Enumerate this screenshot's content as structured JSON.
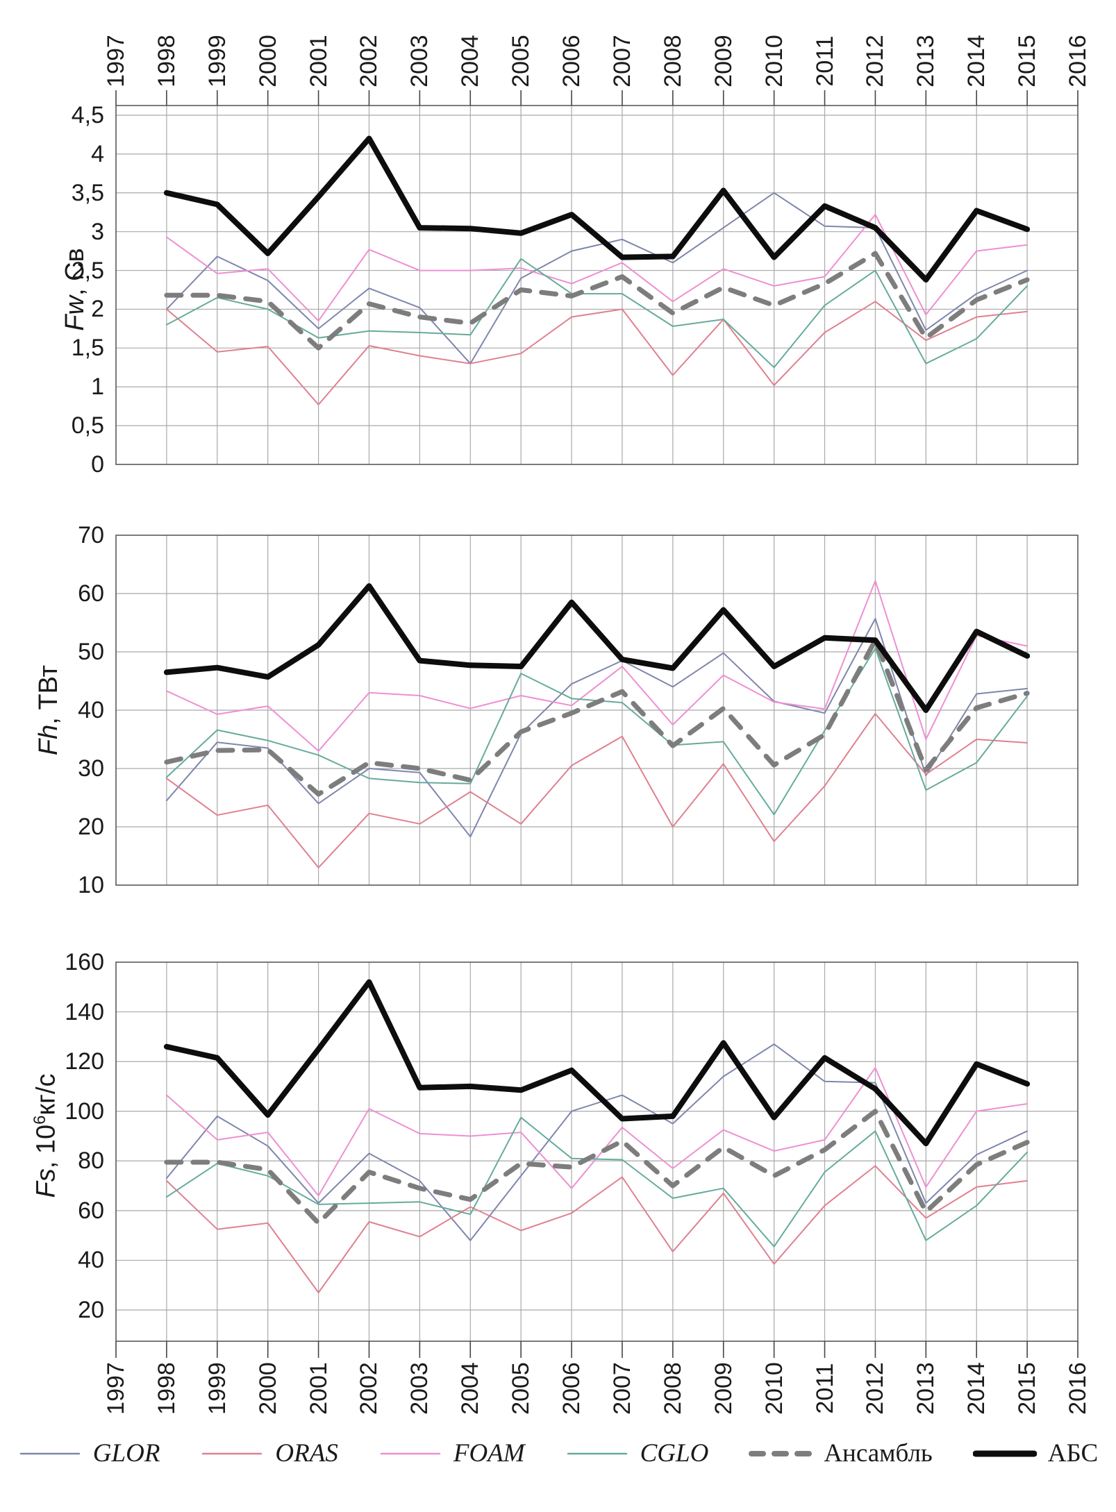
{
  "figure": {
    "description": "Three stacked annual time-series charts (1998-2015) comparing ocean model fluxes",
    "x_axis_years": [
      "1997",
      "1998",
      "1999",
      "2000",
      "2001",
      "2002",
      "2003",
      "2004",
      "2005",
      "2006",
      "2007",
      "2008",
      "2009",
      "2010",
      "2011",
      "2012",
      "2013",
      "2014",
      "2015",
      "2016"
    ]
  },
  "legend": [
    {
      "label": "GLOR",
      "italic": true,
      "color": "#7e86ad",
      "style": "thin"
    },
    {
      "label": "ORAS",
      "italic": true,
      "color": "#e0808f",
      "style": "thin"
    },
    {
      "label": "FOAM",
      "italic": true,
      "color": "#ee8fd2",
      "style": "thin"
    },
    {
      "label": "CGLO",
      "italic": true,
      "color": "#65ab9c",
      "style": "thin"
    },
    {
      "label": "Ансамбль",
      "italic": false,
      "color": "#7d7d7d",
      "style": "dashed"
    },
    {
      "label": "АБС",
      "italic": false,
      "color": "#0d0d0d",
      "style": "thick"
    }
  ],
  "chart_data": [
    {
      "type": "line",
      "title_parts": [
        {
          "t": "Fw",
          "i": 1
        },
        {
          "t": ", Св"
        }
      ],
      "ylim": [
        0,
        4.5
      ],
      "ytick_values": [
        4.5,
        4,
        3.5,
        3,
        2.5,
        2,
        1.5,
        1,
        0.5,
        0
      ],
      "ytick_labels": [
        "4,5",
        "4",
        "3,5",
        "3",
        "2,5",
        "2",
        "1,5",
        "1",
        "0,5",
        "0"
      ],
      "x": [
        1998,
        1999,
        2000,
        2001,
        2002,
        2003,
        2004,
        2005,
        2006,
        2007,
        2008,
        2009,
        2010,
        2011,
        2012,
        2013,
        2014,
        2015
      ],
      "series": [
        {
          "name": "GLOR",
          "values": [
            2.0,
            2.68,
            2.37,
            1.75,
            2.27,
            2.02,
            1.3,
            2.4,
            2.75,
            2.9,
            2.6,
            3.05,
            3.5,
            3.07,
            3.05,
            1.73,
            2.2,
            2.5
          ]
        },
        {
          "name": "ORAS",
          "values": [
            2.0,
            1.45,
            1.52,
            0.77,
            1.53,
            1.4,
            1.3,
            1.43,
            1.9,
            2.0,
            1.15,
            1.87,
            1.02,
            1.7,
            2.1,
            1.6,
            1.9,
            1.97
          ]
        },
        {
          "name": "FOAM",
          "values": [
            2.93,
            2.46,
            2.52,
            1.85,
            2.77,
            2.5,
            2.5,
            2.53,
            2.33,
            2.6,
            2.1,
            2.52,
            2.3,
            2.42,
            3.22,
            1.93,
            2.75,
            2.83
          ]
        },
        {
          "name": "CGLO",
          "values": [
            1.8,
            2.15,
            2.0,
            1.63,
            1.72,
            1.7,
            1.67,
            2.65,
            2.2,
            2.2,
            1.78,
            1.87,
            1.25,
            2.05,
            2.5,
            1.3,
            1.62,
            2.3
          ]
        },
        {
          "name": "Ансамбль",
          "values": [
            2.18,
            2.18,
            2.1,
            1.5,
            2.07,
            1.9,
            1.82,
            2.25,
            2.17,
            2.42,
            1.95,
            2.28,
            2.05,
            2.33,
            2.72,
            1.63,
            2.12,
            2.38
          ]
        },
        {
          "name": "АБС",
          "values": [
            3.5,
            3.35,
            2.72,
            3.45,
            4.2,
            3.05,
            3.04,
            2.98,
            3.22,
            2.67,
            2.68,
            3.53,
            2.67,
            3.33,
            3.05,
            2.38,
            3.27,
            3.03
          ]
        }
      ]
    },
    {
      "type": "line",
      "title_parts": [
        {
          "t": "Fh",
          "i": 1
        },
        {
          "t": ", ТВт"
        }
      ],
      "ylim": [
        10,
        70
      ],
      "ytick_values": [
        70,
        60,
        50,
        40,
        30,
        20,
        10
      ],
      "ytick_labels": [
        "70",
        "60",
        "50",
        "40",
        "30",
        "20",
        "10"
      ],
      "x": [
        1998,
        1999,
        2000,
        2001,
        2002,
        2003,
        2004,
        2005,
        2006,
        2007,
        2008,
        2009,
        2010,
        2011,
        2012,
        2013,
        2014,
        2015
      ],
      "series": [
        {
          "name": "GLOR",
          "values": [
            24.5,
            34.5,
            33.5,
            24,
            30,
            29.3,
            18.3,
            36,
            44.5,
            48.5,
            44,
            49.8,
            41.5,
            39.5,
            55.7,
            28.8,
            42.8,
            43.7
          ]
        },
        {
          "name": "ORAS",
          "values": [
            28.3,
            22,
            23.7,
            13,
            22.3,
            20.5,
            26,
            20.5,
            30.5,
            35.5,
            20,
            30.8,
            17.5,
            27,
            39.4,
            29,
            35,
            34.4
          ]
        },
        {
          "name": "FOAM",
          "values": [
            43.3,
            39.3,
            40.7,
            33,
            43,
            42.5,
            40.3,
            42.5,
            40.8,
            47.5,
            37.5,
            46,
            41.4,
            40.2,
            62.2,
            35,
            52.8,
            51
          ]
        },
        {
          "name": "CGLO",
          "values": [
            28.5,
            36.6,
            34.8,
            32.3,
            28.3,
            27.6,
            27.4,
            46.3,
            42,
            41.3,
            34,
            34.6,
            22.1,
            36.5,
            50.6,
            26.3,
            31,
            42.4
          ]
        },
        {
          "name": "Ансамбль",
          "values": [
            31.1,
            33.1,
            33.2,
            25.6,
            31,
            30,
            28,
            36.3,
            39.5,
            43.2,
            33.9,
            40.3,
            30.6,
            35.8,
            52,
            29.8,
            40.4,
            42.9
          ]
        },
        {
          "name": "АБС",
          "values": [
            46.5,
            47.3,
            45.7,
            51.2,
            61.3,
            48.5,
            47.7,
            47.5,
            58.5,
            48.7,
            47.2,
            57.2,
            47.5,
            52.4,
            52,
            40,
            53.5,
            49.3
          ]
        }
      ]
    },
    {
      "type": "line",
      "title_parts": [
        {
          "t": "Fs",
          "i": 1
        },
        {
          "t": ", 10"
        },
        {
          "t": "6",
          "sup": 1
        },
        {
          "t": "кг/с"
        }
      ],
      "ylim": [
        20,
        160
      ],
      "ytick_values": [
        160,
        140,
        120,
        100,
        80,
        60,
        40,
        20
      ],
      "ytick_labels": [
        "160",
        "140",
        "120",
        "100",
        "80",
        "60",
        "40",
        "20"
      ],
      "x": [
        1998,
        1999,
        2000,
        2001,
        2002,
        2003,
        2004,
        2005,
        2006,
        2007,
        2008,
        2009,
        2010,
        2011,
        2012,
        2013,
        2014,
        2015
      ],
      "series": [
        {
          "name": "GLOR",
          "values": [
            73,
            98,
            86,
            63,
            83,
            72,
            48,
            74,
            100,
            106.5,
            95,
            114,
            127,
            112,
            111.5,
            63,
            82.5,
            92
          ]
        },
        {
          "name": "ORAS",
          "values": [
            72,
            52.5,
            55,
            27,
            55.5,
            49.5,
            61.5,
            52,
            59,
            73.5,
            43.5,
            67,
            38.5,
            62,
            78,
            57,
            69.5,
            72
          ]
        },
        {
          "name": "FOAM",
          "values": [
            106.5,
            88.5,
            91.5,
            66,
            101,
            91,
            90,
            91.5,
            69,
            93.5,
            77,
            92.5,
            84,
            88.5,
            117.5,
            69.5,
            100,
            103
          ]
        },
        {
          "name": "CGLO",
          "values": [
            65.5,
            79,
            74,
            62.5,
            63,
            63.5,
            58.5,
            97.5,
            81,
            80.5,
            65,
            69,
            45.5,
            75.5,
            92,
            48,
            62,
            83.5
          ]
        },
        {
          "name": "Ансамбль",
          "values": [
            79.5,
            79.5,
            76.5,
            55,
            75.5,
            69,
            64.5,
            79,
            77.5,
            88,
            70,
            85.5,
            74,
            84.5,
            100,
            59.5,
            78.5,
            87.5
          ]
        },
        {
          "name": "АБС",
          "values": [
            126,
            121.5,
            98.5,
            125,
            152,
            109.5,
            110,
            108.5,
            116.5,
            97,
            98,
            127.5,
            97.5,
            121.5,
            109,
            87,
            119,
            111
          ]
        }
      ]
    }
  ]
}
